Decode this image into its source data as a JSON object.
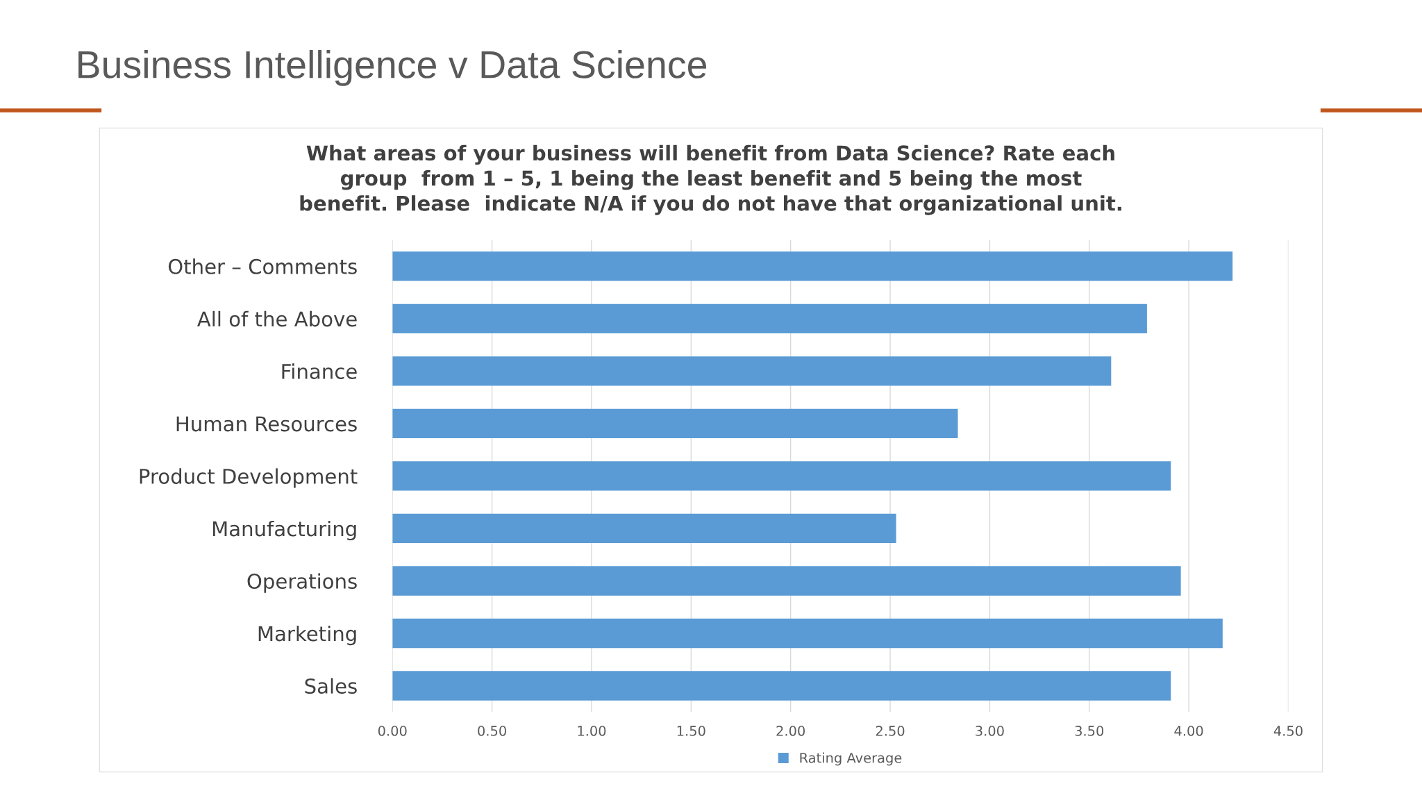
{
  "chart_data": {
    "type": "bar",
    "orientation": "horizontal",
    "title": "Business Intelligence v Data Science",
    "subtitle": "What areas of your business will benefit from Data Science? Rate each\ngroup  from 1 – 5, 1 being the least benefit and 5 being the most\nbenefit. Please  indicate N/A if you do not have that organizational unit.",
    "categories": [
      "Other – Comments",
      "All of the Above",
      "Finance",
      "Human Resources",
      "Product Development",
      "Manufacturing",
      "Operations",
      "Marketing",
      "Sales"
    ],
    "series": [
      {
        "name": "Rating Average",
        "color": "#5b9bd5",
        "values": [
          4.22,
          3.79,
          3.61,
          2.84,
          3.91,
          2.53,
          3.96,
          4.17,
          3.91
        ]
      }
    ],
    "xlim": [
      0,
      4.5
    ],
    "xticks": [
      {
        "value": 0,
        "label": "0.00"
      },
      {
        "value": 0.5,
        "label": "0.50"
      },
      {
        "value": 1,
        "label": "1.00"
      },
      {
        "value": 1.5,
        "label": "1.50"
      },
      {
        "value": 2,
        "label": "2.00"
      },
      {
        "value": 2.5,
        "label": "2.50"
      },
      {
        "value": 3,
        "label": "3.00"
      },
      {
        "value": 3.5,
        "label": "3.50"
      },
      {
        "value": 4,
        "label": "4.00"
      },
      {
        "value": 4.5,
        "label": "4.50"
      }
    ],
    "grid": "x",
    "legend": "bottom"
  }
}
